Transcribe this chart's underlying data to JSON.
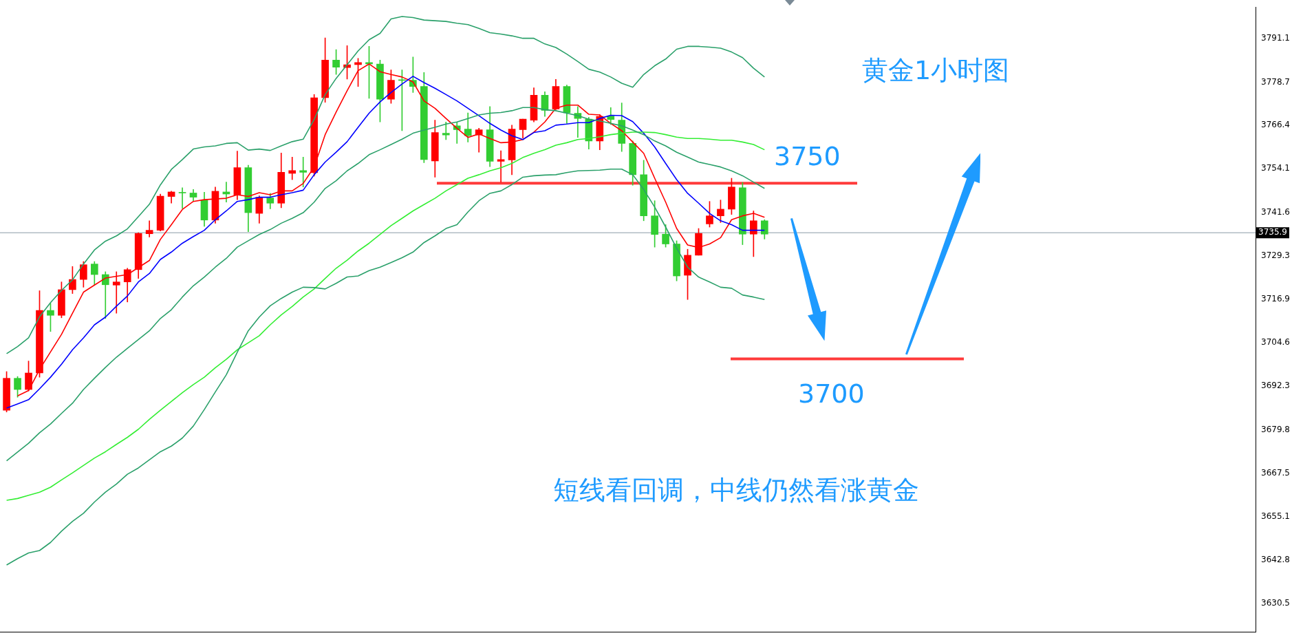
{
  "chart_data": {
    "type": "candlestick",
    "title": "黄金1小时图",
    "categories": [
      null,
      null,
      null,
      null,
      null,
      null,
      null,
      null,
      null,
      null,
      null,
      null,
      null,
      null,
      null,
      null,
      null,
      null,
      null,
      null,
      null,
      null,
      null,
      null,
      null,
      null,
      null,
      null,
      null,
      null,
      null,
      null,
      null,
      null,
      null,
      null,
      null,
      null,
      null,
      null,
      null,
      null,
      null,
      null,
      null,
      null,
      null,
      null,
      null,
      null,
      null,
      null,
      null,
      null,
      null,
      null,
      null,
      null,
      null,
      null,
      null,
      null,
      null,
      null,
      null,
      null,
      null,
      null,
      null,
      null
    ],
    "ohlc": [
      [
        3685.4,
        3696.4,
        3684.9,
        3694.5
      ],
      [
        3694.5,
        3695.0,
        3689.1,
        3691.3
      ],
      [
        3691.3,
        3699.4,
        3690.9,
        3696.0
      ],
      [
        3696.0,
        3719.4,
        3694.8,
        3713.8
      ],
      [
        3713.8,
        3715.8,
        3707.8,
        3712.4
      ],
      [
        3712.4,
        3721.9,
        3711.7,
        3719.7
      ],
      [
        3719.7,
        3726.3,
        3718.6,
        3722.6
      ],
      [
        3722.6,
        3727.7,
        3720.4,
        3726.8
      ],
      [
        3727.0,
        3727.7,
        3721.1,
        3724.0
      ],
      [
        3724.0,
        3724.8,
        3711.5,
        3721.1
      ],
      [
        3721.0,
        3724.8,
        3713.0,
        3721.9
      ],
      [
        3721.9,
        3725.8,
        3716.2,
        3725.4
      ],
      [
        3725.4,
        3735.9,
        3722.9,
        3735.7
      ],
      [
        3735.6,
        3739.3,
        3734.7,
        3736.6
      ],
      [
        3736.6,
        3746.9,
        3736.4,
        3746.3
      ],
      [
        3746.2,
        3747.7,
        3744.3,
        3747.5
      ],
      [
        3747.3,
        3748.7,
        3742.8,
        3747.2
      ],
      [
        3747.2,
        3748.2,
        3745.0,
        3746.0
      ],
      [
        3745.2,
        3747.4,
        3737.7,
        3739.5
      ],
      [
        3739.5,
        3748.9,
        3738.6,
        3747.7
      ],
      [
        3747.5,
        3750.3,
        3744.6,
        3746.9
      ],
      [
        3746.6,
        3759.1,
        3745.3,
        3754.4
      ],
      [
        3754.4,
        3755.1,
        3736.2,
        3741.6
      ],
      [
        3741.4,
        3746.4,
        3738.6,
        3746.0
      ],
      [
        3745.8,
        3747.1,
        3742.7,
        3744.3
      ],
      [
        3744.3,
        3758.6,
        3743.0,
        3753.1
      ],
      [
        3752.8,
        3757.4,
        3751.0,
        3753.6
      ],
      [
        3753.6,
        3757.4,
        3748.9,
        3753.1
      ],
      [
        3753.0,
        3775.2,
        3752.0,
        3774.3
      ],
      [
        3774.3,
        3791.3,
        3773.0,
        3785.0
      ],
      [
        3785.0,
        3788.0,
        3780.9,
        3783.0
      ],
      [
        3782.9,
        3789.1,
        3779.6,
        3783.7
      ],
      [
        3783.7,
        3785.5,
        3777.5,
        3784.3
      ],
      [
        3784.3,
        3788.9,
        3774.1,
        3783.9
      ],
      [
        3783.9,
        3785.0,
        3767.4,
        3773.9
      ],
      [
        3773.9,
        3782.2,
        3772.7,
        3779.3
      ],
      [
        3779.4,
        3782.2,
        3764.9,
        3779.2
      ],
      [
        3779.3,
        3785.9,
        3775.8,
        3777.5
      ],
      [
        3777.5,
        3781.5,
        3755.8,
        3756.7
      ],
      [
        3756.3,
        3767.9,
        3751.7,
        3764.4
      ],
      [
        3764.2,
        3767.4,
        3762.4,
        3763.7
      ],
      [
        3766.3,
        3767.4,
        3761.3,
        3765.2
      ],
      [
        3765.4,
        3770.0,
        3761.7,
        3763.5
      ],
      [
        3763.7,
        3765.6,
        3758.8,
        3765.2
      ],
      [
        3765.2,
        3771.8,
        3754.7,
        3756.2
      ],
      [
        3756.2,
        3759.2,
        3750.3,
        3756.7
      ],
      [
        3756.6,
        3766.5,
        3752.4,
        3765.4
      ],
      [
        3765.2,
        3768.2,
        3762.8,
        3768.2
      ],
      [
        3767.9,
        3777.1,
        3767.4,
        3775.0
      ],
      [
        3775.0,
        3776.0,
        3769.0,
        3770.7
      ],
      [
        3771.1,
        3779.5,
        3770.9,
        3777.5
      ],
      [
        3777.5,
        3777.9,
        3767.0,
        3770.0
      ],
      [
        3769.9,
        3771.8,
        3763.0,
        3768.4
      ],
      [
        3768.2,
        3768.7,
        3759.7,
        3762.0
      ],
      [
        3762.0,
        3769.5,
        3759.5,
        3769.0
      ],
      [
        3769.1,
        3771.5,
        3766.7,
        3768.1
      ],
      [
        3767.9,
        3772.8,
        3759.0,
        3761.3
      ],
      [
        3761.3,
        3762.0,
        3749.4,
        3752.4
      ],
      [
        3752.4,
        3756.5,
        3739.3,
        3740.7
      ],
      [
        3740.7,
        3745.0,
        3731.8,
        3735.4
      ],
      [
        3735.5,
        3738.2,
        3731.8,
        3732.7
      ],
      [
        3732.7,
        3733.6,
        3722.2,
        3723.6
      ],
      [
        3723.8,
        3731.2,
        3716.9,
        3729.5
      ],
      [
        3729.5,
        3737.1,
        3729.5,
        3735.7
      ],
      [
        3738.4,
        3744.8,
        3737.5,
        3740.7
      ],
      [
        3740.7,
        3745.2,
        3738.8,
        3742.6
      ],
      [
        3742.6,
        3751.4,
        3741.1,
        3748.9
      ],
      [
        3748.7,
        3750.2,
        3732.5,
        3735.5
      ],
      [
        3735.5,
        3742.1,
        3729.1,
        3739.3
      ],
      [
        3739.3,
        3739.6,
        3734.1,
        3735.5
      ]
    ],
    "colors": [
      "#ff0000",
      "#32cd32",
      "#ff0000",
      "#ff0000",
      "#32cd32",
      "#ff0000",
      "#ff0000",
      "#ff0000",
      "#32cd32",
      "#32cd32",
      "#ff0000",
      "#ff0000",
      "#ff0000",
      "#ff0000",
      "#ff0000",
      "#ff0000",
      "#32cd32",
      "#32cd32",
      "#32cd32",
      "#ff0000",
      "#32cd32",
      "#ff0000",
      "#32cd32",
      "#ff0000",
      "#32cd32",
      "#ff0000",
      "#ff0000",
      "#32cd32",
      "#ff0000",
      "#ff0000",
      "#32cd32",
      "#ff0000",
      "#ff0000",
      "#32cd32",
      "#32cd32",
      "#ff0000",
      "#32cd32",
      "#32cd32",
      "#32cd32",
      "#ff0000",
      "#32cd32",
      "#32cd32",
      "#32cd32",
      "#ff0000",
      "#32cd32",
      "#ff0000",
      "#ff0000",
      "#ff0000",
      "#ff0000",
      "#32cd32",
      "#ff0000",
      "#32cd32",
      "#32cd32",
      "#32cd32",
      "#ff0000",
      "#32cd32",
      "#32cd32",
      "#32cd32",
      "#32cd32",
      "#32cd32",
      "#32cd32",
      "#32cd32",
      "#ff0000",
      "#ff0000",
      "#ff0000",
      "#ff0000",
      "#ff0000",
      "#32cd32",
      "#ff0000",
      "#32cd32"
    ],
    "series": [
      {
        "type": "line",
        "color": "#2aa06a",
        "values": [
          3701.5,
          3703.5,
          3706,
          3712,
          3716,
          3719.5,
          3722.5,
          3727,
          3731,
          3733.5,
          3735,
          3737,
          3740.5,
          3744,
          3749.5,
          3753.9,
          3756.7,
          3759.7,
          3760.3,
          3760.6,
          3761.3,
          3761.5,
          3759.4,
          3759.7,
          3759.3,
          3760.6,
          3761.8,
          3762.5,
          3768.1,
          3775.2,
          3779.8,
          3783.7,
          3787.6,
          3790.8,
          3792.6,
          3796.7,
          3797.4,
          3797.1,
          3796.4,
          3796.2,
          3796.0,
          3795.5,
          3795.1,
          3794.0,
          3792.8,
          3792.4,
          3791.9,
          3791.2,
          3791.2,
          3789.6,
          3788.6,
          3786.7,
          3784.6,
          3782.4,
          3781.6,
          3780.2,
          3778.4,
          3777.3,
          3780.9,
          3783.4,
          3785.3,
          3788.1,
          3788.9,
          3788.9,
          3788.7,
          3788.4,
          3787.3,
          3785.7,
          3782.7,
          3780.2
        ]
      },
      {
        "type": "line",
        "color": "#2aa06a",
        "values": [
          3671,
          3673.5,
          3676,
          3679,
          3681.5,
          3684.5,
          3687.4,
          3691.3,
          3694.5,
          3697.6,
          3700.5,
          3703.0,
          3705.5,
          3708.0,
          3711.5,
          3714.0,
          3717.6,
          3720.8,
          3723.3,
          3726.1,
          3728.6,
          3731.8,
          3733.6,
          3735.4,
          3736.8,
          3738.6,
          3740.0,
          3741.6,
          3744.6,
          3748.5,
          3750.7,
          3753.5,
          3755.6,
          3758.1,
          3759.5,
          3761.0,
          3762.5,
          3764.2,
          3765.1,
          3765.9,
          3766.8,
          3767.4,
          3768.4,
          3769.4,
          3769.9,
          3770.1,
          3770.6,
          3771.5,
          3771.5,
          3770.9,
          3770.6,
          3769.9,
          3769.2,
          3768.2,
          3767.7,
          3767.0,
          3766.3,
          3765.1,
          3763.8,
          3762.0,
          3760.6,
          3758.8,
          3757.4,
          3756.0,
          3755.3,
          3754.6,
          3753.5,
          3752.1,
          3750.3,
          3748.5
        ]
      },
      {
        "type": "line",
        "color": "#2aa06a",
        "values": [
          3641.4,
          3643.2,
          3644.8,
          3645.5,
          3647.8,
          3651.0,
          3653.8,
          3656.1,
          3659.3,
          3662.1,
          3664.4,
          3667.2,
          3669.0,
          3671.3,
          3673.6,
          3675.2,
          3677.5,
          3680.9,
          3685.6,
          3690.6,
          3695.5,
          3701.9,
          3708.0,
          3711.9,
          3715.1,
          3717.2,
          3719.0,
          3720.4,
          3720.3,
          3719.9,
          3721.5,
          3723.3,
          3723.6,
          3725.1,
          3726.1,
          3727.4,
          3728.8,
          3730.4,
          3733.1,
          3735.0,
          3737.1,
          3738.2,
          3741.8,
          3745.0,
          3747.1,
          3747.8,
          3749.6,
          3751.7,
          3752.1,
          3752.3,
          3752.4,
          3753.0,
          3753.5,
          3753.6,
          3753.7,
          3754.0,
          3754.0,
          3752.4,
          3748.2,
          3743.2,
          3737.5,
          3731.5,
          3726.1,
          3723.3,
          3721.9,
          3720.4,
          3720.1,
          3718.2,
          3717.6,
          3716.9
        ]
      },
      {
        "type": "line",
        "color": "#33ee33",
        "values": [
          3659.8,
          3660.3,
          3661.2,
          3662.1,
          3663.5,
          3665.6,
          3667.6,
          3669.7,
          3671.8,
          3673.6,
          3675.7,
          3677.7,
          3680.0,
          3682.8,
          3685.4,
          3687.9,
          3690.4,
          3692.7,
          3694.8,
          3697.5,
          3699.9,
          3702.6,
          3704.6,
          3706.6,
          3709.7,
          3712.5,
          3714.9,
          3717.6,
          3719.9,
          3722.9,
          3725.8,
          3728.1,
          3730.7,
          3732.9,
          3735.4,
          3737.9,
          3740.0,
          3742.1,
          3743.9,
          3745.7,
          3747.8,
          3749.6,
          3751.4,
          3752.4,
          3753.5,
          3754.4,
          3755.6,
          3757.3,
          3758.5,
          3759.5,
          3760.8,
          3761.5,
          3762.4,
          3762.7,
          3763.2,
          3763.8,
          3764.2,
          3764.5,
          3764.5,
          3764.4,
          3763.8,
          3763.1,
          3762.7,
          3762.7,
          3762.5,
          3762.2,
          3762.2,
          3761.7,
          3761.0,
          3759.5
        ]
      },
      {
        "type": "line",
        "color": "#0000ff",
        "values": [
          3686,
          3687.2,
          3688.4,
          3691.5,
          3694.8,
          3698.5,
          3702.6,
          3706,
          3709.7,
          3711.9,
          3715,
          3717.9,
          3721.9,
          3724.3,
          3728.3,
          3730.4,
          3732.9,
          3734.8,
          3736.6,
          3739.6,
          3742.1,
          3744.8,
          3745.3,
          3746.0,
          3746.0,
          3746.7,
          3747.3,
          3748.0,
          3752.4,
          3756.0,
          3758.8,
          3761.8,
          3765.9,
          3769.9,
          3773.1,
          3775.8,
          3778.2,
          3780.4,
          3778.6,
          3777.0,
          3775.2,
          3773.4,
          3771.3,
          3769.2,
          3767.0,
          3765.1,
          3763.5,
          3762.4,
          3764.4,
          3764.9,
          3766.5,
          3766.8,
          3767.2,
          3767.2,
          3768.4,
          3769.3,
          3769.2,
          3767.5,
          3764.2,
          3760.3,
          3755.6,
          3751.0,
          3747.1,
          3744.3,
          3741.4,
          3739.3,
          3738.2,
          3736.6,
          3736.6,
          3736.6
        ]
      },
      {
        "type": "line",
        "color": "#ff0000",
        "values": [
          null,
          3689.5,
          3691,
          3697,
          3702,
          3707,
          3713,
          3719,
          3721,
          3723,
          3723.5,
          3724,
          3726,
          3728,
          3734,
          3738.2,
          3742.5,
          3744.8,
          3745.3,
          3745.5,
          3745.7,
          3746.7,
          3746.2,
          3747.3,
          3746.7,
          3747.8,
          3747.8,
          3749.9,
          3754.6,
          3763.8,
          3770.2,
          3776.3,
          3782.0,
          3783.9,
          3781.7,
          3780.9,
          3780.2,
          3778.8,
          3773.4,
          3771.3,
          3768.4,
          3765.6,
          3763.0,
          3764.0,
          3762.7,
          3761.5,
          3761.7,
          3762.4,
          3764.5,
          3767.4,
          3771.3,
          3772.2,
          3772.2,
          3769.6,
          3769.4,
          3767.0,
          3764.9,
          3761.7,
          3758.5,
          3751.4,
          3744.6,
          3737.1,
          3732.4,
          3731.7,
          3732.7,
          3734.5,
          3739.6,
          3740.7,
          3741.4,
          3740.3
        ]
      }
    ],
    "ylim": [
      3622.4,
      3800.1
    ],
    "yticks": [
      3630.5,
      3642.8,
      3655.1,
      3667.5,
      3679.8,
      3692.3,
      3704.6,
      3716.9,
      3729.3,
      3741.6,
      3754.1,
      3766.4,
      3778.7,
      3791.1
    ],
    "tick_labels": "y",
    "ref_lines": [
      {
        "axis": "y",
        "value": 3735.9,
        "label": "3735.9",
        "color": "#8a9aa6"
      },
      {
        "axis": "y",
        "value": 3750,
        "label": "3750",
        "color": "#ff3b3b"
      },
      {
        "axis": "y",
        "value": 3700,
        "label": "3700",
        "color": "#ff3b3b"
      }
    ],
    "annotations": [
      "短线看回调，中线仍然看涨黄金"
    ]
  }
}
